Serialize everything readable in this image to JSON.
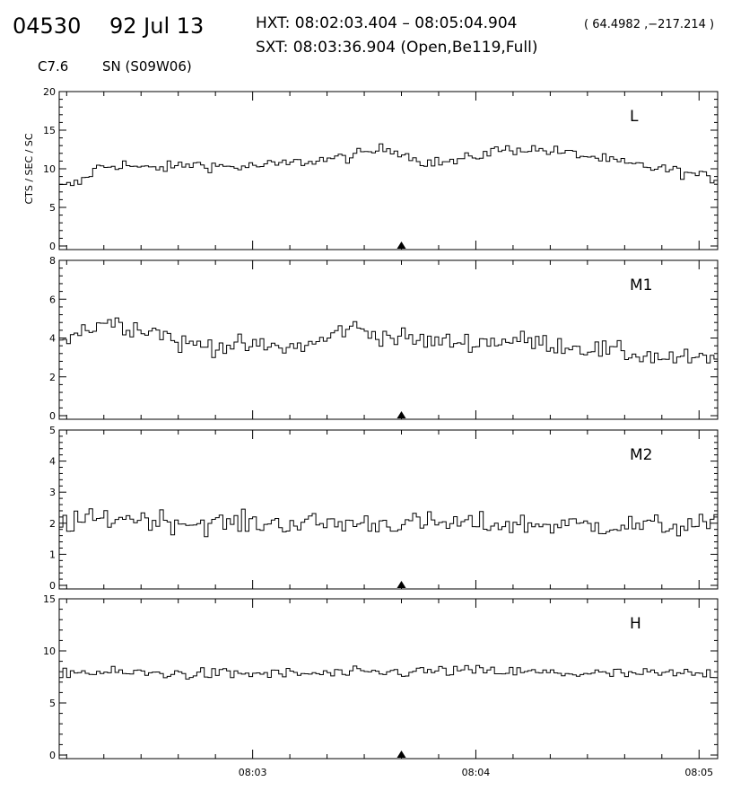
{
  "header": {
    "event_id": "04530",
    "date": "92 Jul 13",
    "hxt_line": "HXT: 08:02:03.404 – 08:05:04.904",
    "coords": "( 64.4982 ,−217.214 )",
    "sxt_line": "SXT: 08:03:36.904 (Open,Be119,Full)",
    "goes_class": "C7.6",
    "location": "SN (S09W06)"
  },
  "y_axis_label": "CTS / SEC / SC",
  "colors": {
    "line": "#000000",
    "axis": "#000000",
    "background": "#ffffff"
  },
  "chart_data": [
    {
      "type": "line",
      "style": "step",
      "name": "L",
      "xlim": [
        "08:02:08",
        "08:05:05"
      ],
      "ylim": [
        0,
        20
      ],
      "yticks": [
        0,
        5,
        10,
        15,
        20
      ],
      "xticks": [
        "08:03",
        "08:04",
        "08:05"
      ],
      "x_step_seconds": 1,
      "marker_time": "08:03:40",
      "envelope": [
        [
          "08:02:08",
          7.6
        ],
        [
          "08:02:13",
          8.2
        ],
        [
          "08:02:18",
          10.2
        ],
        [
          "08:02:25",
          10.6
        ],
        [
          "08:02:30",
          10.0
        ],
        [
          "08:02:37",
          10.2
        ],
        [
          "08:02:43",
          10.6
        ],
        [
          "08:02:55",
          10.2
        ],
        [
          "08:03:05",
          10.5
        ],
        [
          "08:03:15",
          11.0
        ],
        [
          "08:03:25",
          11.5
        ],
        [
          "08:03:35",
          12.6
        ],
        [
          "08:03:40",
          12.2
        ],
        [
          "08:03:43",
          11.2
        ],
        [
          "08:03:48",
          10.8
        ],
        [
          "08:03:55",
          11.0
        ],
        [
          "08:04:05",
          12.4
        ],
        [
          "08:04:13",
          12.6
        ],
        [
          "08:04:20",
          12.3
        ],
        [
          "08:04:30",
          11.6
        ],
        [
          "08:04:40",
          10.6
        ],
        [
          "08:04:50",
          10.0
        ],
        [
          "08:05:05",
          8.6
        ]
      ],
      "noise": 0.65
    },
    {
      "type": "line",
      "style": "step",
      "name": "M1",
      "xlim": [
        "08:02:08",
        "08:05:05"
      ],
      "ylim": [
        0,
        8
      ],
      "yticks": [
        0,
        2,
        4,
        6,
        8
      ],
      "xticks": [
        "08:03",
        "08:04",
        "08:05"
      ],
      "x_step_seconds": 1,
      "marker_time": "08:03:40",
      "envelope": [
        [
          "08:02:08",
          4.0
        ],
        [
          "08:02:15",
          4.5
        ],
        [
          "08:02:20",
          4.9
        ],
        [
          "08:02:27",
          4.6
        ],
        [
          "08:02:35",
          4.3
        ],
        [
          "08:02:40",
          3.7
        ],
        [
          "08:02:55",
          3.6
        ],
        [
          "08:03:10",
          3.5
        ],
        [
          "08:03:18",
          3.8
        ],
        [
          "08:03:25",
          4.6
        ],
        [
          "08:03:35",
          4.1
        ],
        [
          "08:03:48",
          3.8
        ],
        [
          "08:04:00",
          3.8
        ],
        [
          "08:04:10",
          3.9
        ],
        [
          "08:04:25",
          3.6
        ],
        [
          "08:04:40",
          3.2
        ],
        [
          "08:04:50",
          3.0
        ],
        [
          "08:05:05",
          2.8
        ]
      ],
      "noise": 0.45
    },
    {
      "type": "line",
      "style": "step",
      "name": "M2",
      "xlim": [
        "08:02:08",
        "08:05:05"
      ],
      "ylim": [
        0,
        5
      ],
      "yticks": [
        0,
        1,
        2,
        3,
        4,
        5
      ],
      "xticks": [
        "08:03",
        "08:04",
        "08:05"
      ],
      "x_step_seconds": 1,
      "marker_time": "08:03:40",
      "envelope": [
        [
          "08:02:08",
          2.0
        ],
        [
          "08:02:25",
          2.2
        ],
        [
          "08:02:45",
          2.0
        ],
        [
          "08:03:40",
          2.0
        ],
        [
          "08:04:20",
          1.95
        ],
        [
          "08:05:05",
          1.9
        ]
      ],
      "noise": 0.32
    },
    {
      "type": "line",
      "style": "step",
      "name": "H",
      "xlim": [
        "08:02:08",
        "08:05:05"
      ],
      "ylim": [
        0,
        15
      ],
      "yticks": [
        0,
        5,
        10,
        15
      ],
      "xticks": [
        "08:03",
        "08:04",
        "08:05"
      ],
      "x_step_seconds": 1,
      "marker_time": "08:03:40",
      "envelope": [
        [
          "08:02:08",
          8.0
        ],
        [
          "08:02:40",
          7.8
        ],
        [
          "08:03:20",
          7.8
        ],
        [
          "08:03:55",
          8.1
        ],
        [
          "08:04:30",
          7.8
        ],
        [
          "08:05:05",
          7.8
        ]
      ],
      "noise": 0.5
    }
  ]
}
